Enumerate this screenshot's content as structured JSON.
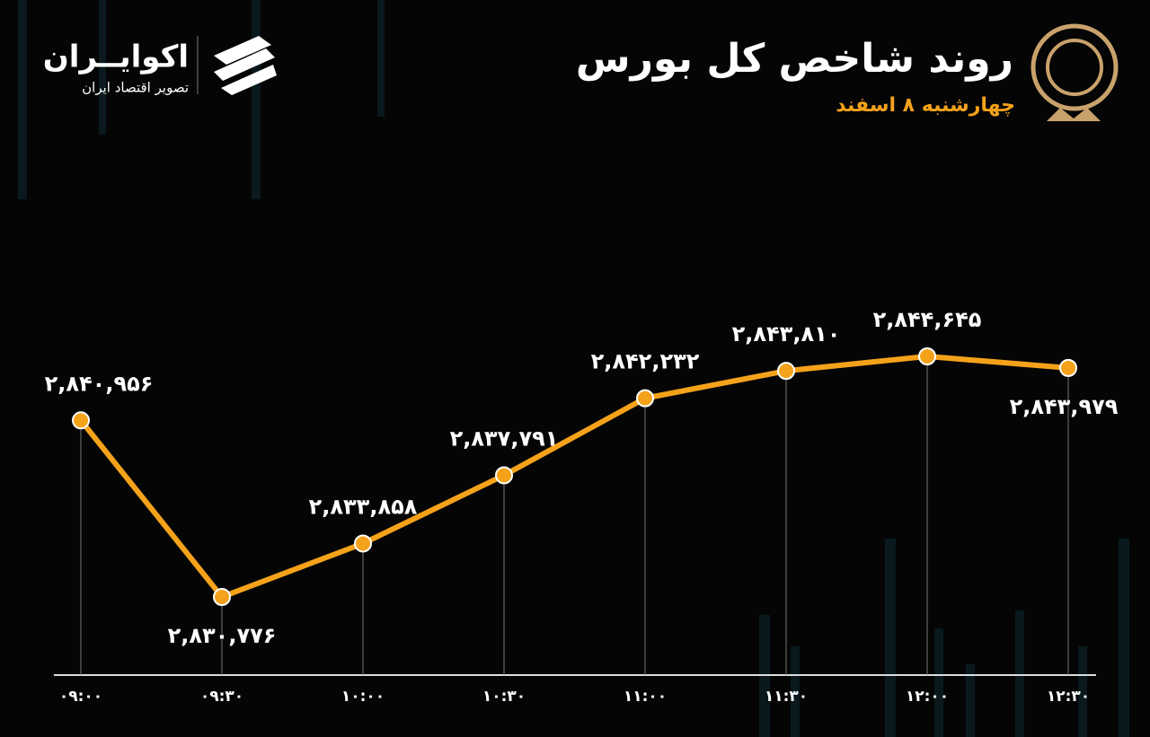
{
  "chart_data": {
    "type": "line",
    "title": "روند شاخص کل بورس",
    "subtitle": "چهارشنبه ۸ اسفند",
    "annotations": [
      "اکوایــران",
      "تصویر اقتصاد ایران"
    ],
    "categories": [
      "۰۹:۰۰",
      "۰۹:۳۰",
      "۱۰:۰۰",
      "۱۰:۳۰",
      "۱۱:۰۰",
      "۱۱:۳۰",
      "۱۲:۰۰",
      "۱۲:۳۰"
    ],
    "values": [
      2840956,
      2830776,
      2833858,
      2837791,
      2842232,
      2843810,
      2844645,
      2843979
    ],
    "value_labels": [
      "۲,۸۴۰,۹۵۶",
      "۲,۸۳۰,۷۷۶",
      "۲,۸۳۳,۸۵۸",
      "۲,۸۳۷,۷۹۱",
      "۲,۸۴۲,۲۳۲",
      "۲,۸۴۳,۸۱۰",
      "۲,۸۴۴,۶۴۵",
      "۲,۸۴۳,۹۷۹"
    ],
    "color": "#f5a21b"
  }
}
